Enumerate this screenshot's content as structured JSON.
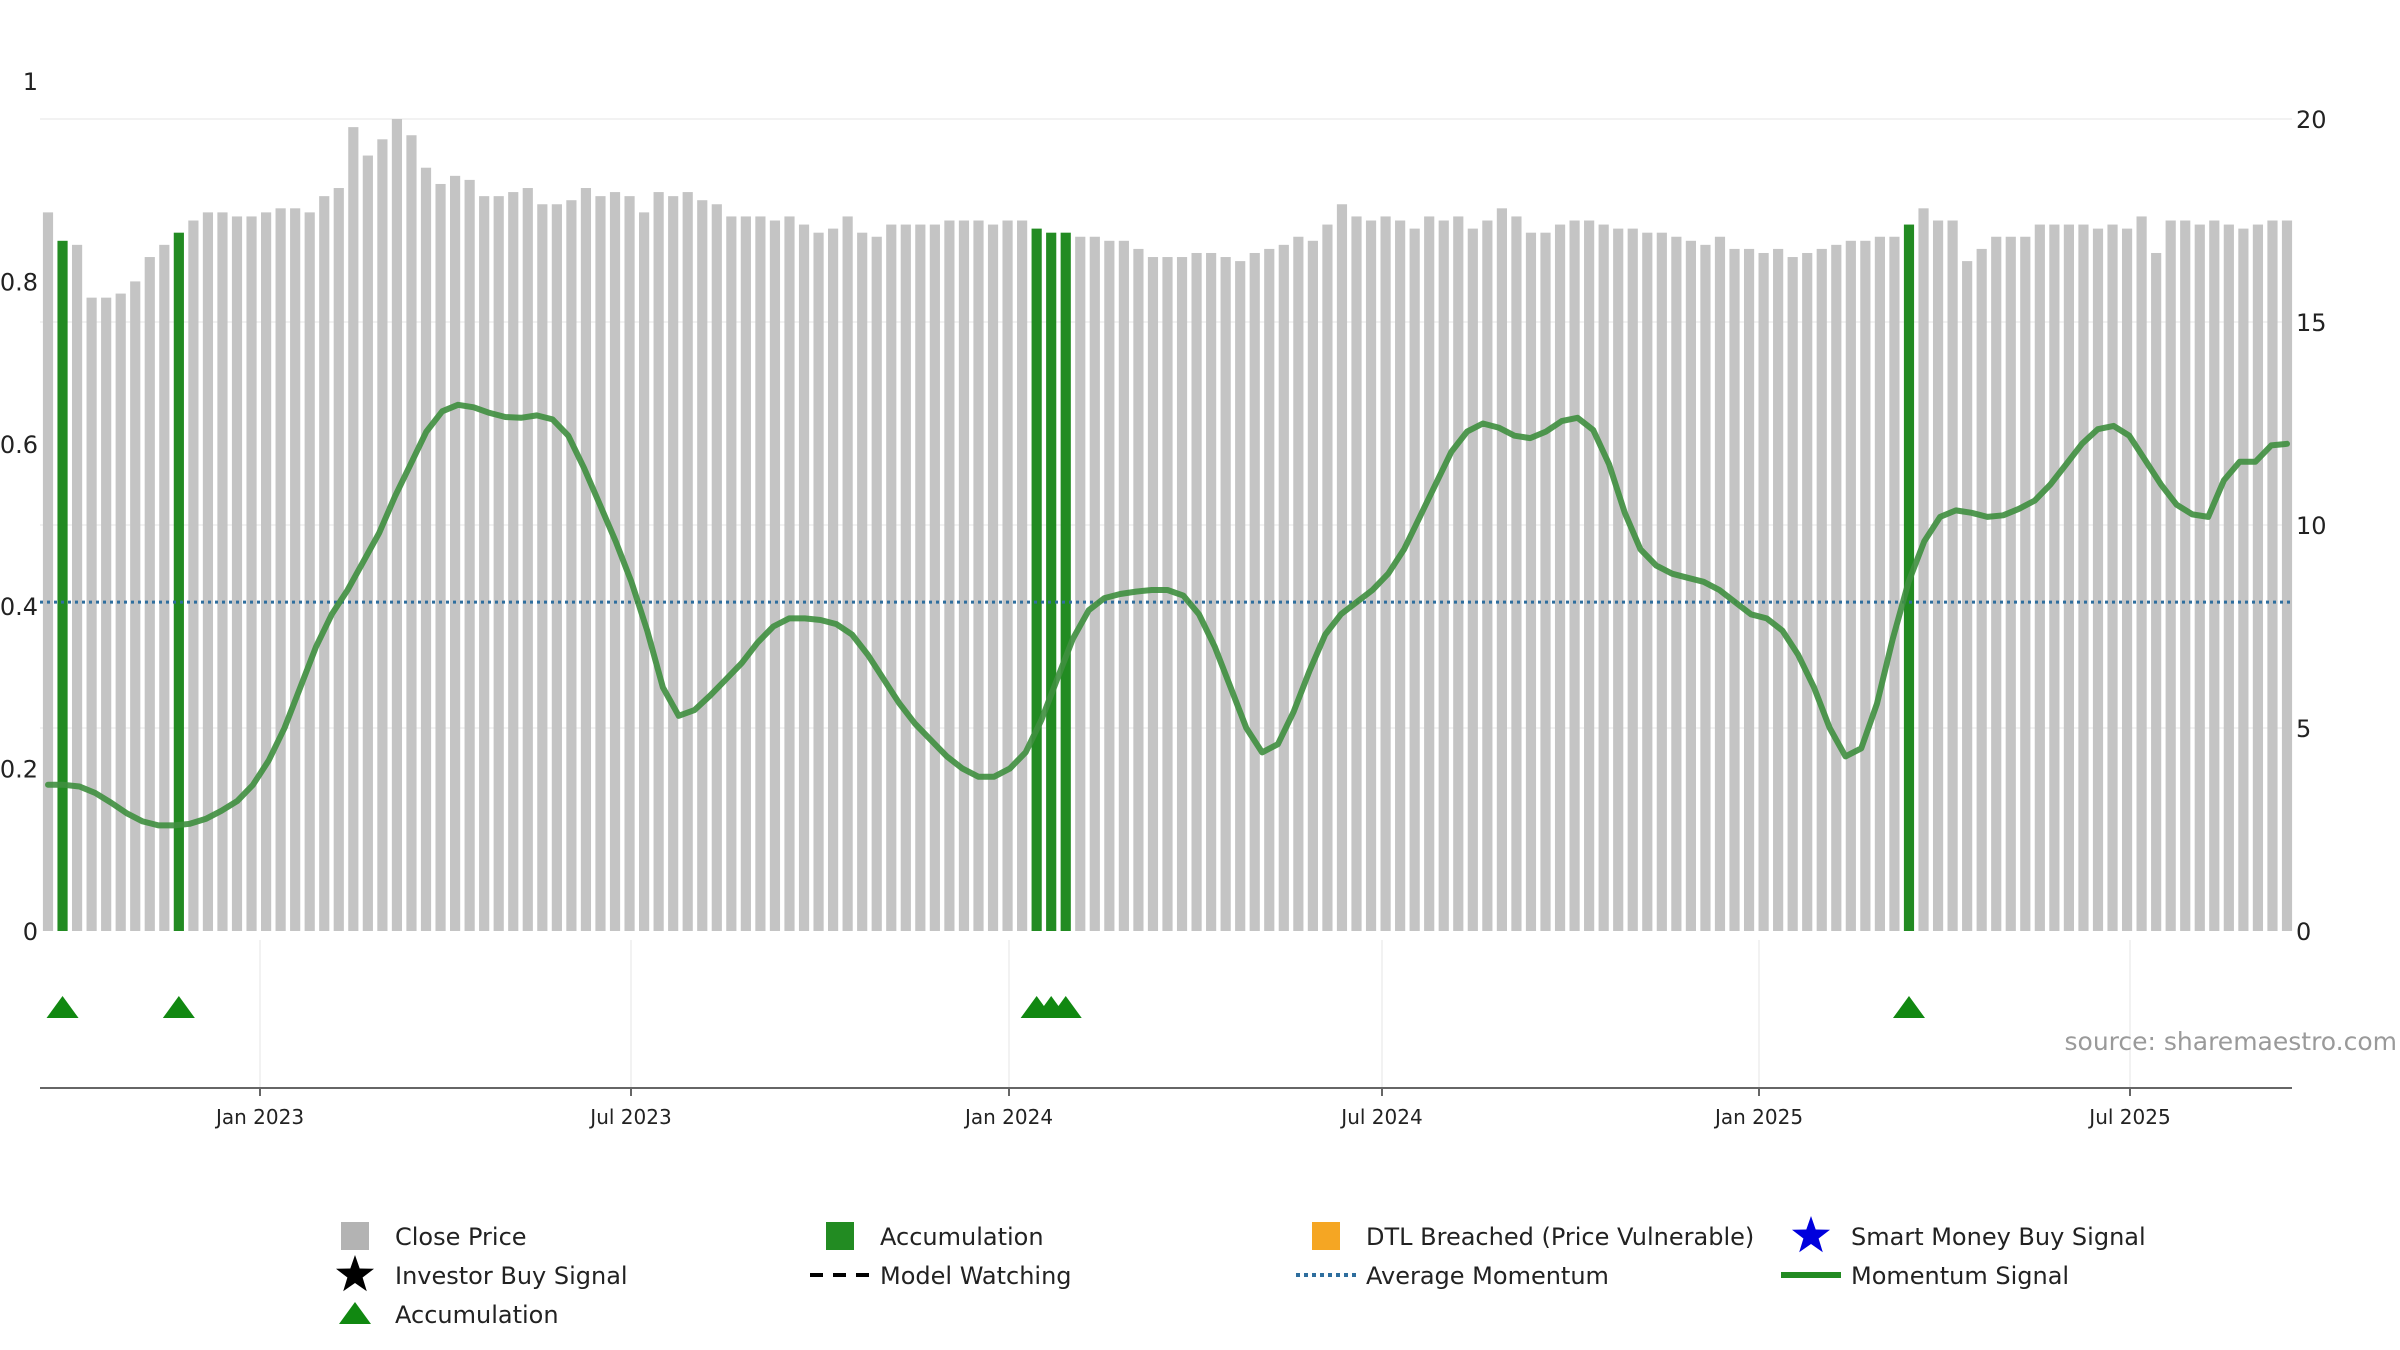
{
  "chart_data": {
    "type": "bar",
    "left_axis": {
      "ticks": [
        0,
        0.2,
        0.4,
        0.6,
        0.8
      ],
      "top_label": "1",
      "range": [
        0,
        1
      ]
    },
    "right_axis": {
      "ticks": [
        0,
        5,
        10,
        15,
        20
      ],
      "range": [
        0,
        20
      ]
    },
    "x_ticks": [
      "Jan 2023",
      "Jul 2023",
      "Jan 2024",
      "Jul 2024",
      "Jan 2025",
      "Jul 2025"
    ],
    "close_price": [
      17.7,
      17.0,
      16.9,
      15.6,
      15.6,
      15.7,
      16.0,
      16.6,
      16.9,
      17.2,
      17.5,
      17.7,
      17.7,
      17.6,
      17.6,
      17.7,
      17.8,
      17.8,
      17.7,
      18.1,
      18.3,
      19.8,
      19.1,
      19.5,
      20.0,
      19.6,
      18.8,
      18.4,
      18.6,
      18.5,
      18.1,
      18.1,
      18.2,
      18.3,
      17.9,
      17.9,
      18.0,
      18.3,
      18.1,
      18.2,
      18.1,
      17.7,
      18.2,
      18.1,
      18.2,
      18.0,
      17.9,
      17.6,
      17.6,
      17.6,
      17.5,
      17.6,
      17.4,
      17.2,
      17.3,
      17.6,
      17.2,
      17.1,
      17.4,
      17.4,
      17.4,
      17.4,
      17.5,
      17.5,
      17.5,
      17.4,
      17.5,
      17.5,
      17.3,
      17.2,
      17.2,
      17.1,
      17.1,
      17.0,
      17.0,
      16.8,
      16.6,
      16.6,
      16.6,
      16.7,
      16.7,
      16.6,
      16.5,
      16.7,
      16.8,
      16.9,
      17.1,
      17.0,
      17.4,
      17.9,
      17.6,
      17.5,
      17.6,
      17.5,
      17.3,
      17.6,
      17.5,
      17.6,
      17.3,
      17.5,
      17.8,
      17.6,
      17.2,
      17.2,
      17.4,
      17.5,
      17.5,
      17.4,
      17.3,
      17.3,
      17.2,
      17.2,
      17.1,
      17.0,
      16.9,
      17.1,
      16.8,
      16.8,
      16.7,
      16.8,
      16.6,
      16.7,
      16.8,
      16.9,
      17.0,
      17.0,
      17.1,
      17.1,
      17.4,
      17.8,
      17.5,
      17.5,
      16.5,
      16.8,
      17.1,
      17.1,
      17.1,
      17.4,
      17.4,
      17.4,
      17.4,
      17.3,
      17.4,
      17.3,
      17.6,
      16.7,
      17.5,
      17.5,
      17.4,
      17.5,
      17.4,
      17.3,
      17.4,
      17.5,
      17.5
    ],
    "accumulation_bars": [
      1,
      9,
      68,
      69,
      70,
      128
    ],
    "momentum": [
      0.18,
      0.18,
      0.178,
      0.17,
      0.158,
      0.145,
      0.135,
      0.13,
      0.13,
      0.132,
      0.138,
      0.148,
      0.16,
      0.18,
      0.21,
      0.25,
      0.3,
      0.35,
      0.39,
      0.42,
      0.455,
      0.49,
      0.535,
      0.575,
      0.615,
      0.64,
      0.648,
      0.645,
      0.638,
      0.633,
      0.632,
      0.635,
      0.63,
      0.61,
      0.57,
      0.525,
      0.48,
      0.43,
      0.37,
      0.3,
      0.265,
      0.272,
      0.29,
      0.31,
      0.33,
      0.355,
      0.375,
      0.385,
      0.385,
      0.383,
      0.378,
      0.365,
      0.34,
      0.31,
      0.28,
      0.255,
      0.235,
      0.215,
      0.2,
      0.19,
      0.19,
      0.2,
      0.22,
      0.26,
      0.31,
      0.36,
      0.395,
      0.41,
      0.415,
      0.418,
      0.42,
      0.42,
      0.413,
      0.39,
      0.35,
      0.3,
      0.25,
      0.22,
      0.23,
      0.27,
      0.32,
      0.365,
      0.39,
      0.405,
      0.42,
      0.44,
      0.47,
      0.51,
      0.55,
      0.59,
      0.615,
      0.625,
      0.62,
      0.61,
      0.607,
      0.615,
      0.628,
      0.632,
      0.617,
      0.575,
      0.515,
      0.47,
      0.45,
      0.44,
      0.435,
      0.43,
      0.42,
      0.405,
      0.39,
      0.385,
      0.37,
      0.34,
      0.3,
      0.25,
      0.215,
      0.225,
      0.28,
      0.36,
      0.43,
      0.48,
      0.51,
      0.518,
      0.515,
      0.51,
      0.512,
      0.52,
      0.53,
      0.55,
      0.575,
      0.6,
      0.618,
      0.622,
      0.61,
      0.58,
      0.55,
      0.525,
      0.513,
      0.51,
      0.555,
      0.578,
      0.578,
      0.598,
      0.6
    ],
    "average_momentum": 0.405,
    "triangle_markers": [
      1,
      9,
      68,
      69,
      70,
      128
    ],
    "source_text": "source: sharemaestro.com",
    "legend": [
      {
        "label": "Close Price",
        "symbol": "square",
        "color": "#b3b3b3"
      },
      {
        "label": "Accumulation",
        "symbol": "square",
        "color": "#228b22"
      },
      {
        "label": "DTL Breached (Price Vulnerable)",
        "symbol": "square",
        "color": "#f5a623"
      },
      {
        "label": "Smart Money Buy Signal",
        "symbol": "star",
        "color": "#0000dd"
      },
      {
        "label": "Investor Buy Signal",
        "symbol": "star",
        "color": "#000000"
      },
      {
        "label": "Model Watching",
        "symbol": "dash",
        "color": "#000000"
      },
      {
        "label": "Average Momentum",
        "symbol": "dotted",
        "color": "#2e6e9e"
      },
      {
        "label": "Momentum Signal",
        "symbol": "line",
        "color": "#228b22"
      },
      {
        "label": "Accumulation",
        "symbol": "triangle",
        "color": "#118811"
      }
    ]
  }
}
